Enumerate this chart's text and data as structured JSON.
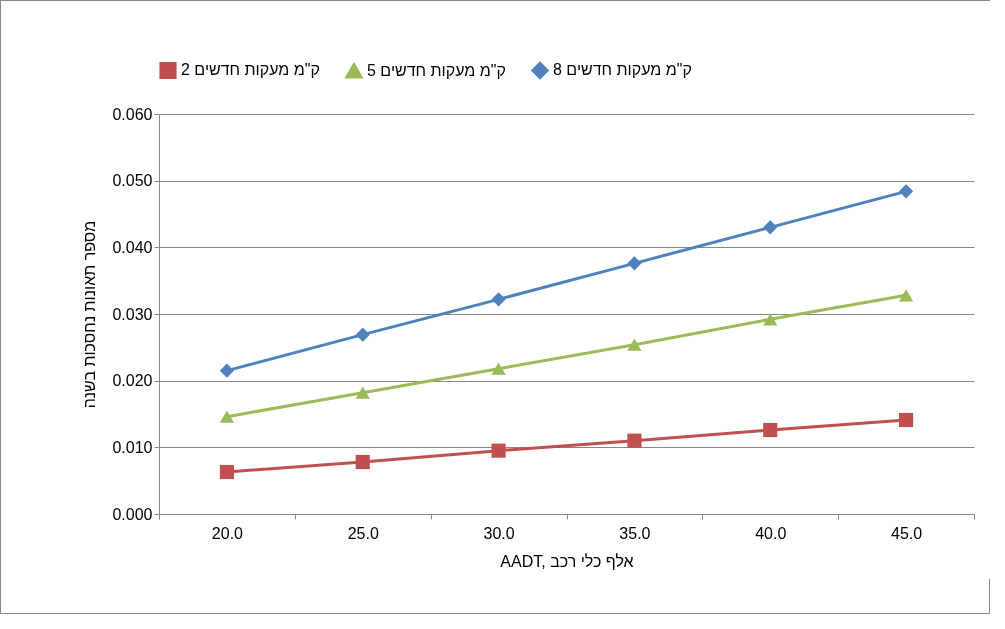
{
  "chart_data": {
    "type": "line",
    "categories": [
      "20.0",
      "25.0",
      "30.0",
      "35.0",
      "40.0",
      "45.0"
    ],
    "series": [
      {
        "name": "2 ק\"מ מעקות חדשים",
        "color": "#c0504d",
        "marker": "square",
        "values": [
          0.0063,
          0.0078,
          0.0095,
          0.011,
          0.0126,
          0.0141
        ]
      },
      {
        "name": "5 ק\"מ מעקות חדשים",
        "color": "#9bbb59",
        "marker": "triangle",
        "values": [
          0.0146,
          0.0182,
          0.0218,
          0.0254,
          0.0292,
          0.0328
        ]
      },
      {
        "name": "8 ק\"מ מעקות חדשים",
        "color": "#4f81bd",
        "marker": "diamond",
        "values": [
          0.0215,
          0.0269,
          0.0322,
          0.0376,
          0.043,
          0.0484
        ]
      }
    ],
    "xlabel": "AADT, אלף כלי רכב",
    "ylabel": "מספר תאונות נחסכות בשנה",
    "ylim": [
      0,
      0.06
    ],
    "yticks": [
      {
        "value": 0,
        "label": "0.000"
      },
      {
        "value": 0.01,
        "label": "0.010"
      },
      {
        "value": 0.02,
        "label": "0.020"
      },
      {
        "value": 0.03,
        "label": "0.030"
      },
      {
        "value": 0.04,
        "label": "0.040"
      },
      {
        "value": 0.05,
        "label": "0.050"
      },
      {
        "value": 0.06,
        "label": "0.060"
      }
    ],
    "grid": "y",
    "legend": "top",
    "line_style": "solid"
  }
}
